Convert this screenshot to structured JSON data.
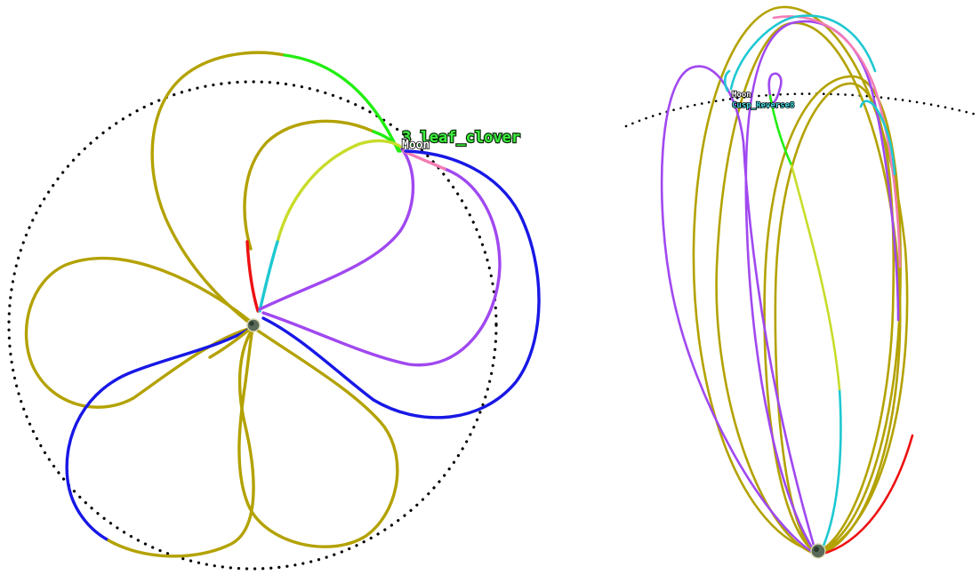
{
  "colors": {
    "olive": "#b3a200",
    "green": "#22ee11",
    "lime": "#c8dc2a",
    "cyan": "#1ec8d2",
    "red": "#ee1111",
    "blue": "#1818e6",
    "purple": "#a048f0",
    "pink": "#f47cb4",
    "moon_orbit": "#000000",
    "label_green": "#3cf03c",
    "label_white": "#ffffff",
    "label_cyan": "#46e0e6"
  },
  "left_view": {
    "trajectory_label": "3_leaf_clover",
    "moon_label": "Moon",
    "earth_icon": "earth-icon"
  },
  "right_view": {
    "moon_label": "Moon",
    "trajectory_label": "Cusp_Reverse8",
    "earth_icon": "earth-icon"
  }
}
